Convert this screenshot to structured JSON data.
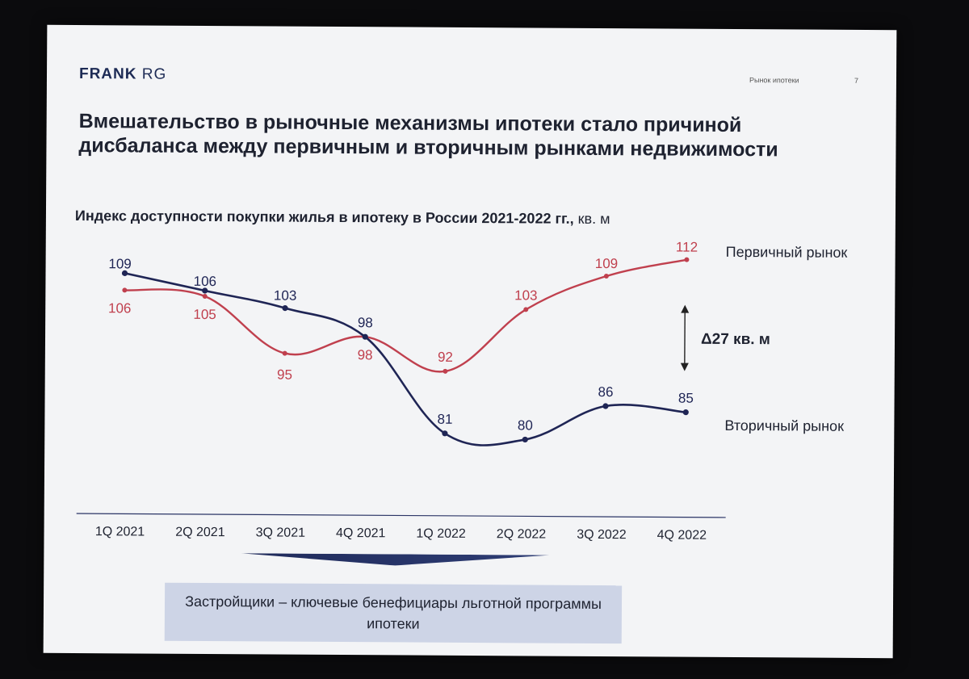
{
  "header": {
    "brand_bold": "FRANK",
    "brand_light": "RG",
    "section": "Рынок ипотеки",
    "page_number": "7"
  },
  "title": "Вмешательство в рыночные механизмы ипотеки стало причиной дисбаланса между первичным и вторичным рынками недвижимости",
  "subtitle": {
    "main": "Индекс доступности покупки жилья в ипотеку в России 2021-2022 гг.,",
    "unit": " кв. м"
  },
  "chart_data": {
    "type": "line",
    "title": "Индекс доступности покупки жилья в ипотеку в России 2021-2022 гг., кв. м",
    "categories": [
      "1Q 2021",
      "2Q 2021",
      "3Q 2021",
      "4Q 2021",
      "1Q 2022",
      "2Q 2022",
      "3Q 2022",
      "4Q 2022"
    ],
    "series": [
      {
        "name": "Первичный рынок",
        "color": "#c0404e",
        "values": [
          106,
          105,
          95,
          98,
          92,
          103,
          109,
          112
        ]
      },
      {
        "name": "Вторичный рынок",
        "color": "#1f2555",
        "values": [
          109,
          106,
          103,
          98,
          81,
          80,
          86,
          85
        ]
      }
    ],
    "ylim": [
      70,
      120
    ],
    "annotation": "Δ27 кв. м",
    "grid": false,
    "legend": "right, at line ends"
  },
  "conclusion": "Застройщики – ключевые бенефициары льготной программы ипотеки",
  "colors": {
    "navy": "#1f2555",
    "red": "#c0404e",
    "box": "#cdd4e6"
  }
}
